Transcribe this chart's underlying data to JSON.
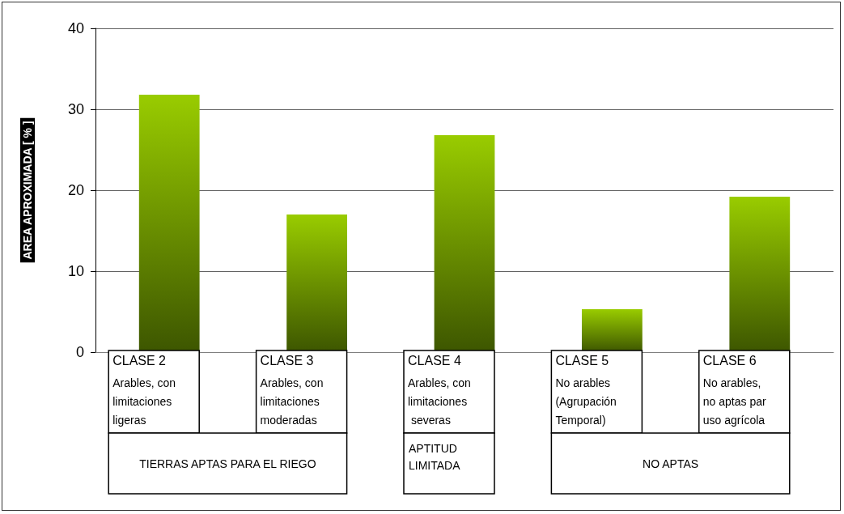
{
  "chart_data": {
    "type": "bar",
    "ylabel": "AREA APROXIMADA [ % ]",
    "categories": [
      "CLASE 2\nArables, con\nlimitaciones\nligeras",
      "CLASE 3\nArables, con\nlimitaciones\nmoderadas",
      "CLASE 4\nArables, con\nlimitaciones\n severas",
      "CLASE 5\nNo arables\n(Agrupación\nTemporal)",
      "CLASE 6\nNo arables,\nno aptas par\nuso agrícola"
    ],
    "values": [
      31.8,
      17.0,
      26.8,
      5.3,
      19.2
    ],
    "color": "#99cc00",
    "ylim": [
      0,
      40
    ],
    "yticks": [
      0,
      10,
      20,
      30,
      40
    ],
    "grid": "y",
    "annotations": [
      "TIERRAS APTAS PARA EL RIEGO",
      "APTITUD LIMITADA",
      "NO APTAS"
    ]
  }
}
